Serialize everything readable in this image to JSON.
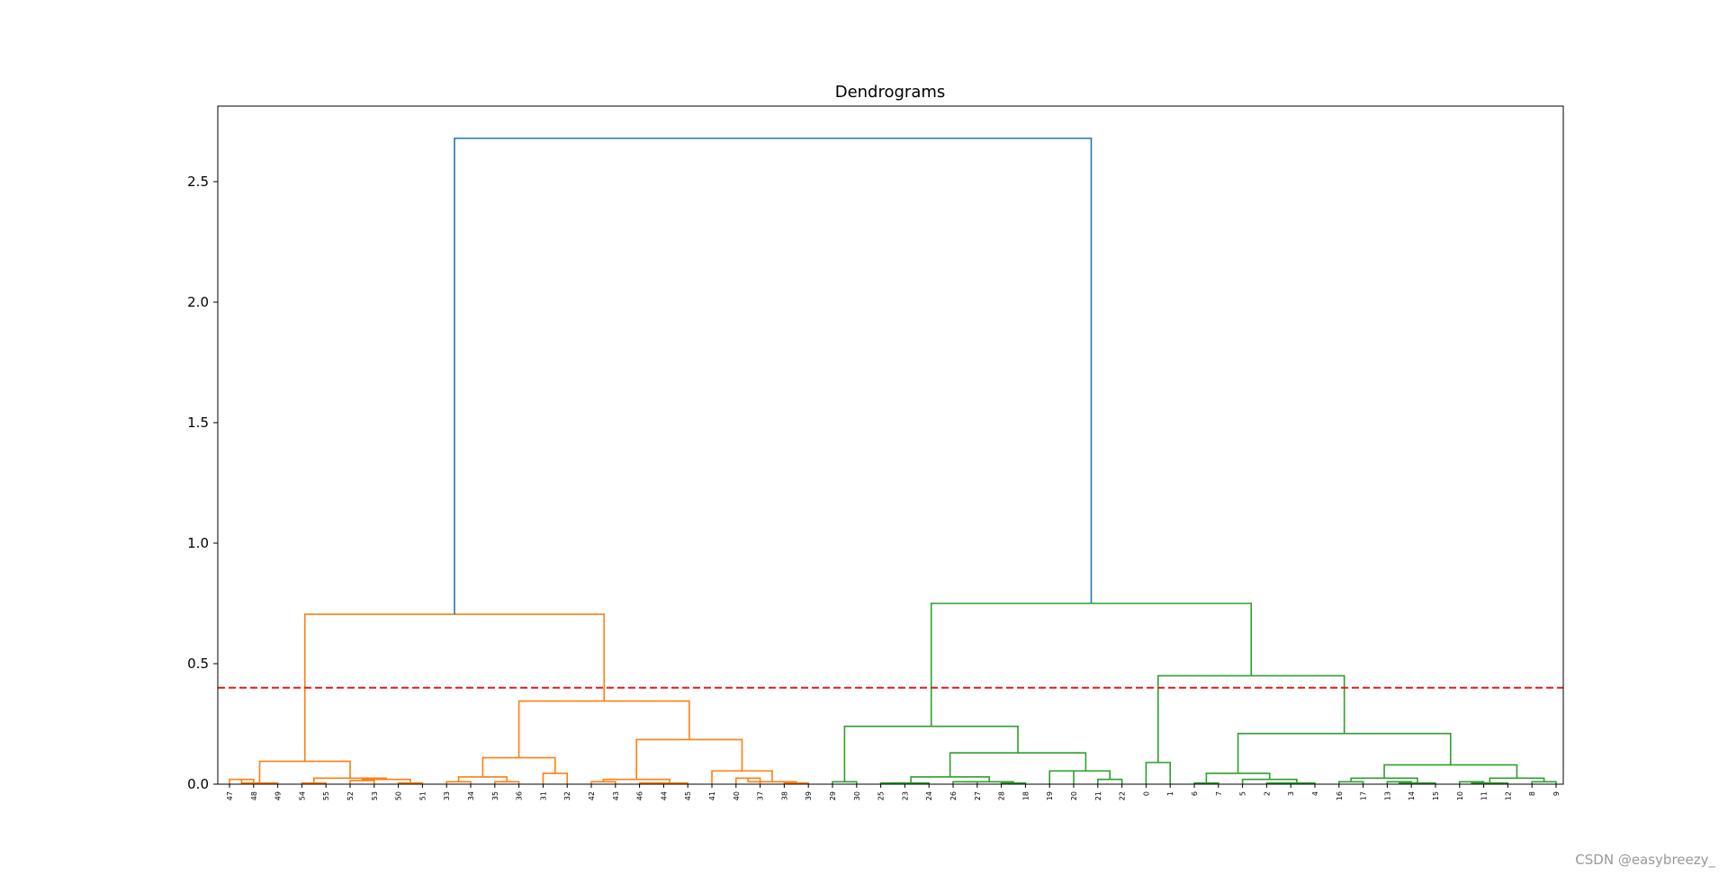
{
  "chart_data": {
    "type": "dendrogram",
    "title": "Dendrograms",
    "xlabel": "",
    "ylabel": "",
    "ylim": [
      0,
      2.8
    ],
    "yticks": [
      "0.0",
      "0.5",
      "1.0",
      "1.5",
      "2.0",
      "2.5"
    ],
    "leaves": [
      "47",
      "48",
      "49",
      "54",
      "55",
      "52",
      "53",
      "50",
      "51",
      "33",
      "34",
      "35",
      "36",
      "31",
      "32",
      "42",
      "43",
      "46",
      "44",
      "45",
      "41",
      "40",
      "37",
      "38",
      "39",
      "29",
      "30",
      "25",
      "23",
      "24",
      "26",
      "27",
      "28",
      "18",
      "19",
      "20",
      "21",
      "22",
      "0",
      "1",
      "6",
      "7",
      "5",
      "2",
      "3",
      "4",
      "16",
      "17",
      "13",
      "14",
      "15",
      "10",
      "11",
      "12",
      "8",
      "9"
    ],
    "threshold": {
      "value": 0.4,
      "color": "#e41a1c",
      "style": "dashed"
    },
    "colors": {
      "cluster_1": "#ff7f0e",
      "cluster_2": "#2ca02c",
      "root": "#1f77b4"
    },
    "merges": [
      {
        "a": "L0",
        "b": "L1",
        "h": 0.02,
        "color": "cluster_1"
      },
      {
        "a": "L2",
        "b": "C0",
        "h": 0.005,
        "color": "cluster_1"
      },
      {
        "a": "L3",
        "b": "L4",
        "h": 0.005,
        "color": "cluster_1"
      },
      {
        "a": "L5",
        "b": "L6",
        "h": 0.015,
        "color": "cluster_1"
      },
      {
        "a": "L7",
        "b": "L8",
        "h": 0.005,
        "color": "cluster_1"
      },
      {
        "a": "C3",
        "b": "C4",
        "h": 0.02,
        "color": "cluster_1"
      },
      {
        "a": "C2",
        "b": "C5",
        "h": 0.025,
        "color": "cluster_1"
      },
      {
        "a": "C1",
        "b": "C6",
        "h": 0.095,
        "color": "cluster_1"
      },
      {
        "a": "L9",
        "b": "L10",
        "h": 0.01,
        "color": "cluster_1"
      },
      {
        "a": "L11",
        "b": "L12",
        "h": 0.01,
        "color": "cluster_1"
      },
      {
        "a": "C8",
        "b": "C9",
        "h": 0.03,
        "color": "cluster_1"
      },
      {
        "a": "L13",
        "b": "L14",
        "h": 0.045,
        "color": "cluster_1"
      },
      {
        "a": "C10",
        "b": "C11",
        "h": 0.11,
        "color": "cluster_1"
      },
      {
        "a": "L15",
        "b": "L16",
        "h": 0.01,
        "color": "cluster_1"
      },
      {
        "a": "L17",
        "b": "L18",
        "h": 0.005,
        "color": "cluster_1"
      },
      {
        "a": "C14",
        "b": "L19",
        "h": 0.005,
        "color": "cluster_1"
      },
      {
        "a": "C13",
        "b": "C15",
        "h": 0.02,
        "color": "cluster_1"
      },
      {
        "a": "L21",
        "b": "L22",
        "h": 0.025,
        "color": "cluster_1"
      },
      {
        "a": "L23",
        "b": "L24",
        "h": 0.005,
        "color": "cluster_1"
      },
      {
        "a": "C17",
        "b": "C18",
        "h": 0.01,
        "color": "cluster_1"
      },
      {
        "a": "L20",
        "b": "C19",
        "h": 0.055,
        "color": "cluster_1"
      },
      {
        "a": "C16",
        "b": "C20",
        "h": 0.185,
        "color": "cluster_1"
      },
      {
        "a": "C12",
        "b": "C21",
        "h": 0.345,
        "color": "cluster_1"
      },
      {
        "a": "C7",
        "b": "C22",
        "h": 0.705,
        "color": "cluster_1"
      },
      {
        "a": "L25",
        "b": "L26",
        "h": 0.01,
        "color": "cluster_2"
      },
      {
        "a": "L27",
        "b": "L28",
        "h": 0.005,
        "color": "cluster_2"
      },
      {
        "a": "C25",
        "b": "L29",
        "h": 0.005,
        "color": "cluster_2"
      },
      {
        "a": "L30",
        "b": "L31",
        "h": 0.01,
        "color": "cluster_2"
      },
      {
        "a": "L32",
        "b": "L33",
        "h": 0.005,
        "color": "cluster_2"
      },
      {
        "a": "C27",
        "b": "C28",
        "h": 0.01,
        "color": "cluster_2"
      },
      {
        "a": "C26",
        "b": "C29",
        "h": 0.03,
        "color": "cluster_2"
      },
      {
        "a": "L34",
        "b": "L35",
        "h": 0.055,
        "color": "cluster_2"
      },
      {
        "a": "L36",
        "b": "L37",
        "h": 0.02,
        "color": "cluster_2"
      },
      {
        "a": "C31",
        "b": "C32",
        "h": 0.055,
        "color": "cluster_2"
      },
      {
        "a": "C30",
        "b": "C33",
        "h": 0.13,
        "color": "cluster_2"
      },
      {
        "a": "C24",
        "b": "C34",
        "h": 0.24,
        "color": "cluster_2"
      },
      {
        "a": "L38",
        "b": "L39",
        "h": 0.09,
        "color": "cluster_2"
      },
      {
        "a": "L40",
        "b": "L41",
        "h": 0.005,
        "color": "cluster_2"
      },
      {
        "a": "L43",
        "b": "L44",
        "h": 0.005,
        "color": "cluster_2"
      },
      {
        "a": "C38",
        "b": "L45",
        "h": 0.005,
        "color": "cluster_2"
      },
      {
        "a": "L42",
        "b": "C39",
        "h": 0.02,
        "color": "cluster_2"
      },
      {
        "a": "C37",
        "b": "C40",
        "h": 0.045,
        "color": "cluster_2"
      },
      {
        "a": "L46",
        "b": "L47",
        "h": 0.01,
        "color": "cluster_2"
      },
      {
        "a": "L48",
        "b": "L49",
        "h": 0.01,
        "color": "cluster_2"
      },
      {
        "a": "C43",
        "b": "L50",
        "h": 0.005,
        "color": "cluster_2"
      },
      {
        "a": "C42",
        "b": "C44",
        "h": 0.025,
        "color": "cluster_2"
      },
      {
        "a": "L51",
        "b": "L52",
        "h": 0.01,
        "color": "cluster_2"
      },
      {
        "a": "C46",
        "b": "L53",
        "h": 0.005,
        "color": "cluster_2"
      },
      {
        "a": "L54",
        "b": "L55",
        "h": 0.01,
        "color": "cluster_2"
      },
      {
        "a": "C47",
        "b": "C48",
        "h": 0.025,
        "color": "cluster_2"
      },
      {
        "a": "C45",
        "b": "C49",
        "h": 0.08,
        "color": "cluster_2"
      },
      {
        "a": "C41",
        "b": "C50",
        "h": 0.21,
        "color": "cluster_2"
      },
      {
        "a": "C36",
        "b": "C51",
        "h": 0.45,
        "color": "cluster_2"
      },
      {
        "a": "C35",
        "b": "C52",
        "h": 0.75,
        "color": "cluster_2"
      },
      {
        "a": "C23",
        "b": "C53",
        "h": 2.68,
        "color": "root"
      }
    ]
  },
  "watermark": "CSDN @easybreezy_"
}
